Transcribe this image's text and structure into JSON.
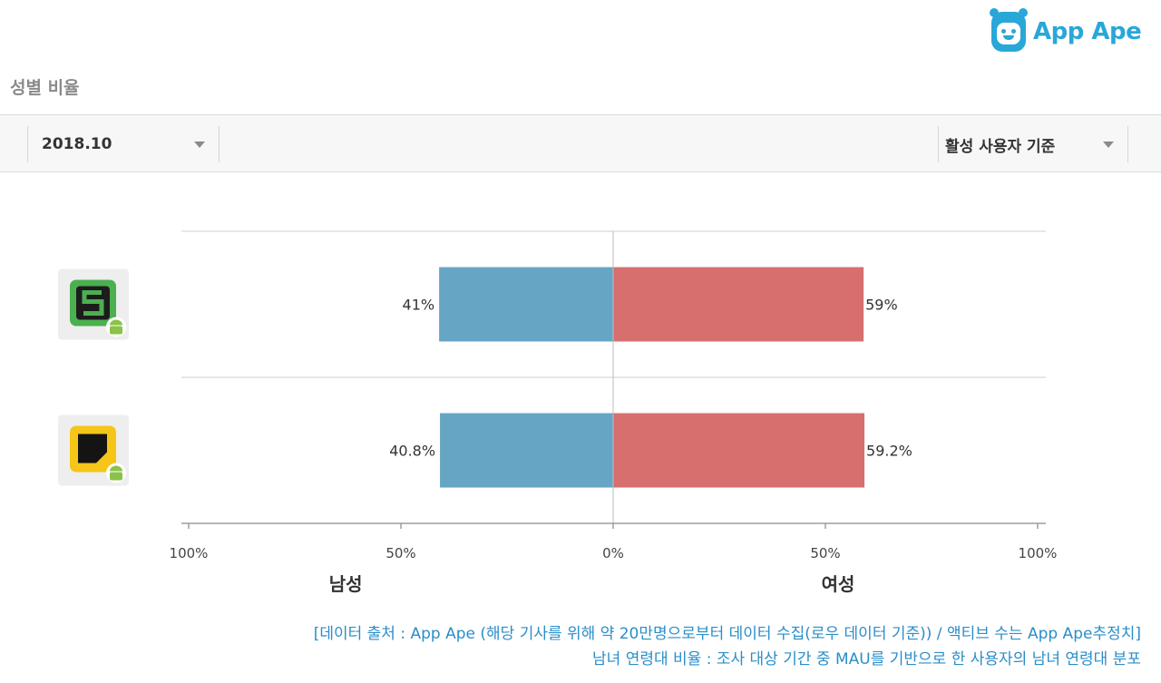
{
  "brand": {
    "name": "App Ape",
    "color": "#29a7d8"
  },
  "section_title": "성별 비율",
  "filters": {
    "date": {
      "value": "2018.10"
    },
    "basis": {
      "value": "활성 사용자 기준"
    }
  },
  "chart_data": {
    "type": "bar",
    "orientation": "horizontal-diverging",
    "categories": [
      "app-1",
      "app-2"
    ],
    "category_icons": [
      {
        "name": "s-app-icon",
        "bg": "#4caf50",
        "platform": "android"
      },
      {
        "name": "yellow-app-icon",
        "bg": "#f5c518",
        "platform": "android"
      }
    ],
    "series": [
      {
        "name": "남성",
        "values": [
          41,
          40.8
        ],
        "labels": [
          "41%",
          "40.8%"
        ],
        "color": "#66a6c4",
        "direction": "left"
      },
      {
        "name": "여성",
        "values": [
          59,
          59.2
        ],
        "labels": [
          "59%",
          "59.2%"
        ],
        "color": "#d66f6e",
        "direction": "right"
      }
    ],
    "xlim": [
      -100,
      100
    ],
    "ticks": [
      -100,
      -50,
      0,
      50,
      100
    ],
    "tick_labels": [
      "100%",
      "50%",
      "0%",
      "50%",
      "100%"
    ],
    "xlabel_left": "남성",
    "xlabel_right": "여성"
  },
  "footnotes": [
    "[데이터 출처 : App Ape (해당 기사를 위해 약 20만명으로부터 데이터 수집(로우 데이터 기준)) / 액티브 수는 App Ape추정치]",
    "남녀 연령대 비율 : 조사 대상 기간 중 MAU를 기반으로 한 사용자의 남녀 연령대 분포"
  ]
}
